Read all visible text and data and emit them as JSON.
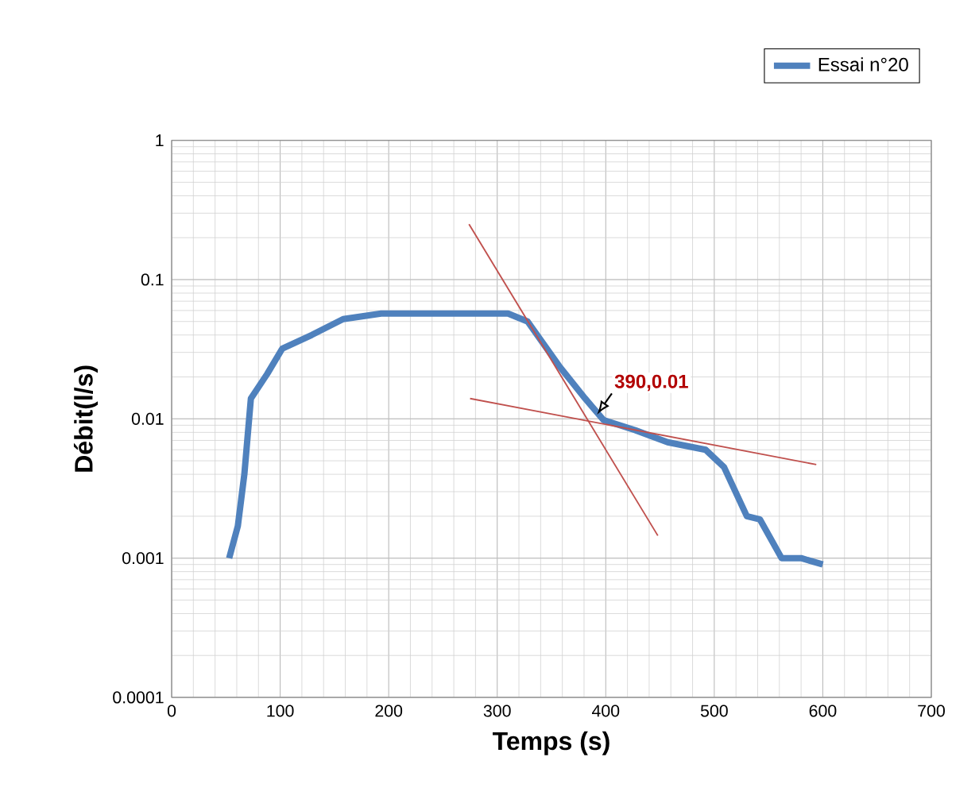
{
  "chart_data": {
    "type": "line",
    "xlabel": "Temps (s)",
    "ylabel": "Débit(l/s)",
    "log": "y",
    "xlim": [
      0,
      700
    ],
    "xticks": [
      0,
      100,
      200,
      300,
      400,
      500,
      600,
      700
    ],
    "ylim": [
      0.0001,
      1
    ],
    "yticks": [
      0.0001,
      0.001,
      0.01,
      0.1,
      1
    ],
    "grid": true,
    "legend": "top right",
    "marker": "none",
    "line_style": "solid",
    "series": [
      {
        "name": "Essai n°20",
        "color": "#4f81bd",
        "x": [
          53,
          61,
          67,
          73,
          88,
          102,
          129,
          158,
          193,
          310,
          328,
          357,
          381,
          398,
          427,
          457,
          492,
          509,
          530,
          542,
          562,
          580,
          600
        ],
        "values": [
          0.001,
          0.0017,
          0.004,
          0.014,
          0.021,
          0.032,
          0.04,
          0.052,
          0.057,
          0.057,
          0.05,
          0.024,
          0.014,
          0.0098,
          0.0083,
          0.0068,
          0.006,
          0.0045,
          0.002,
          0.0019,
          0.001,
          0.001,
          0.0009
        ]
      },
      {
        "color": "#c0504d",
        "x": [
          274,
          448
        ],
        "values": [
          0.25,
          0.00145
        ]
      },
      {
        "color": "#c0504d",
        "x": [
          275,
          594
        ],
        "values": [
          0.014,
          0.0047
        ]
      }
    ],
    "annotations": [
      {
        "text": "390,0.01",
        "x": 390,
        "y": 0.01
      }
    ]
  }
}
